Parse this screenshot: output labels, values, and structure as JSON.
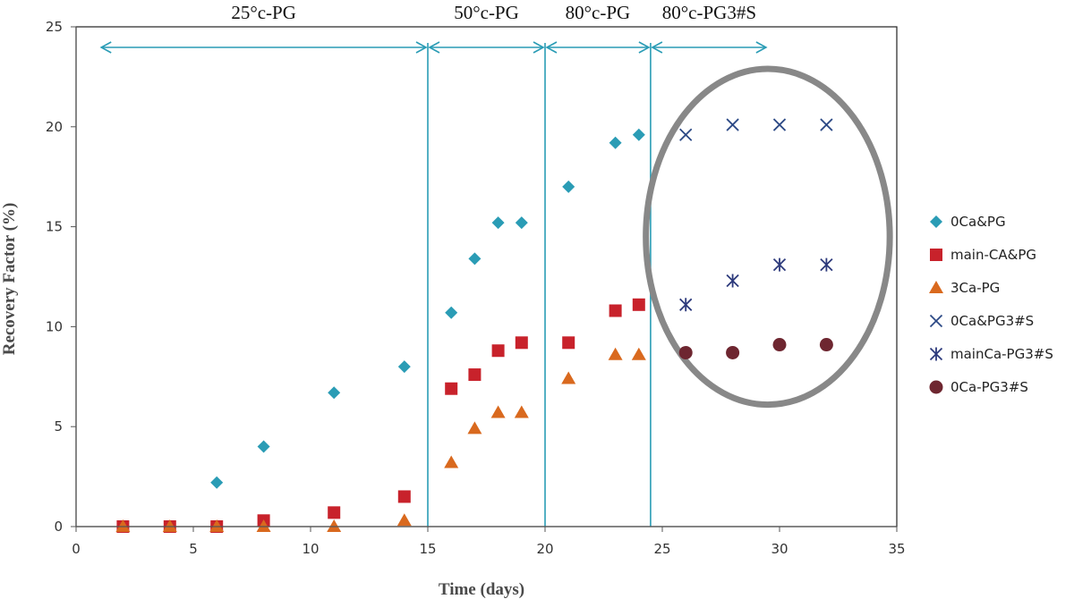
{
  "chart_data": {
    "type": "scatter",
    "xlabel": "Time (days)",
    "ylabel": "Recovery Factor (%)",
    "xlim": [
      0,
      35
    ],
    "ylim": [
      0,
      25
    ],
    "xticks": [
      0,
      5,
      10,
      15,
      20,
      25,
      30,
      35
    ],
    "yticks": [
      0,
      5,
      10,
      15,
      20,
      25
    ],
    "grid": false,
    "legend_position": "right",
    "regions": [
      {
        "label": "25°c-PG",
        "from": 1,
        "to": 15
      },
      {
        "label": "50°c-PG",
        "from": 15,
        "to": 20
      },
      {
        "label": "80°c-PG",
        "from": 20,
        "to": 24.5
      },
      {
        "label": "80°c-PG3#S",
        "from": 24.5,
        "to": 29.5
      }
    ],
    "vertical_lines": [
      15,
      20,
      24.5
    ],
    "highlight_ellipse": {
      "cx": 29.5,
      "cy": 14.5,
      "rx": 5.2,
      "ry": 8.4
    },
    "series": [
      {
        "name": "0Ca&PG",
        "marker": "diamond",
        "color": "#2a9cb5",
        "x": [
          2,
          4,
          6,
          8,
          11,
          14,
          16,
          17,
          18,
          19,
          21,
          23,
          24
        ],
        "y": [
          0,
          0,
          2.2,
          4.0,
          6.7,
          8.0,
          10.7,
          13.4,
          15.2,
          15.2,
          17.0,
          19.2,
          19.6
        ]
      },
      {
        "name": "main-CA&PG",
        "marker": "square",
        "color": "#c8222b",
        "x": [
          2,
          4,
          6,
          8,
          11,
          14,
          16,
          17,
          18,
          19,
          21,
          23,
          24
        ],
        "y": [
          0,
          0,
          0,
          0.3,
          0.7,
          1.5,
          6.9,
          7.6,
          8.8,
          9.2,
          9.2,
          10.8,
          11.1
        ]
      },
      {
        "name": "3Ca-PG",
        "marker": "triangle",
        "color": "#d9691e",
        "x": [
          2,
          4,
          6,
          8,
          11,
          14,
          16,
          17,
          18,
          19,
          21,
          23,
          24
        ],
        "y": [
          0,
          0,
          0,
          0,
          0,
          0.3,
          3.2,
          4.9,
          5.7,
          5.7,
          7.4,
          8.6,
          8.6
        ]
      },
      {
        "name": "0Ca&PG3#S",
        "marker": "x",
        "color": "#2d4a86",
        "x": [
          26,
          28,
          30,
          32
        ],
        "y": [
          19.6,
          20.1,
          20.1,
          20.1
        ]
      },
      {
        "name": "mainCa-PG3#S",
        "marker": "asterisk",
        "color": "#2d3a7c",
        "x": [
          26,
          28,
          30,
          32
        ],
        "y": [
          11.1,
          12.3,
          13.1,
          13.1
        ]
      },
      {
        "name": "0Ca-PG3#S",
        "marker": "circle",
        "color": "#6e2630",
        "x": [
          26,
          28,
          30,
          32
        ],
        "y": [
          8.7,
          8.7,
          9.1,
          9.1
        ]
      }
    ]
  },
  "colors": {
    "axis": "#555555",
    "frame": "#222222",
    "guide_line": "#2a9cb5",
    "ellipse": "#888888"
  }
}
